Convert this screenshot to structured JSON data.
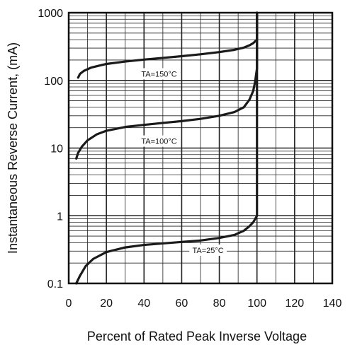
{
  "chart_data": {
    "type": "line",
    "xlabel": "Percent of Rated Peak Inverse Voltage",
    "ylabel": "Instantaneous Reverse Current, (mA)",
    "xlim": [
      0,
      140
    ],
    "ylim": [
      0.1,
      1000
    ],
    "yscale": "log",
    "grid": true,
    "x_ticks": [
      "0",
      "20",
      "40",
      "60",
      "80",
      "100",
      "120",
      "140"
    ],
    "y_ticks": [
      "0.1",
      "1",
      "10",
      "100",
      "1000"
    ],
    "series": [
      {
        "name": "TA=150°C",
        "color": "#1a1a1a",
        "points": [
          [
            5,
            110
          ],
          [
            6,
            125
          ],
          [
            8,
            138
          ],
          [
            12,
            155
          ],
          [
            20,
            175
          ],
          [
            30,
            190
          ],
          [
            40,
            203
          ],
          [
            50,
            215
          ],
          [
            60,
            228
          ],
          [
            70,
            243
          ],
          [
            80,
            262
          ],
          [
            88,
            283
          ],
          [
            93,
            305
          ],
          [
            96,
            330
          ],
          [
            98,
            355
          ],
          [
            100,
            400
          ],
          [
            100,
            1000
          ]
        ]
      },
      {
        "name": "TA=100°C",
        "color": "#1a1a1a",
        "points": [
          [
            4,
            7
          ],
          [
            5,
            8.5
          ],
          [
            7,
            10.5
          ],
          [
            10,
            13
          ],
          [
            15,
            16
          ],
          [
            20,
            18
          ],
          [
            30,
            20.5
          ],
          [
            40,
            22
          ],
          [
            50,
            23.5
          ],
          [
            60,
            25
          ],
          [
            70,
            27
          ],
          [
            80,
            30
          ],
          [
            88,
            34
          ],
          [
            93,
            40
          ],
          [
            96,
            52
          ],
          [
            98,
            70
          ],
          [
            99,
            95
          ],
          [
            100,
            150
          ],
          [
            100,
            1000
          ]
        ]
      },
      {
        "name": "TA=25°C",
        "color": "#1a1a1a",
        "points": [
          [
            4,
            0.1
          ],
          [
            6,
            0.13
          ],
          [
            9,
            0.18
          ],
          [
            13,
            0.23
          ],
          [
            20,
            0.29
          ],
          [
            30,
            0.34
          ],
          [
            40,
            0.37
          ],
          [
            50,
            0.39
          ],
          [
            60,
            0.41
          ],
          [
            70,
            0.43
          ],
          [
            80,
            0.47
          ],
          [
            88,
            0.52
          ],
          [
            93,
            0.6
          ],
          [
            96,
            0.7
          ],
          [
            98,
            0.8
          ],
          [
            100,
            1.0
          ],
          [
            100,
            1000
          ]
        ]
      }
    ],
    "annotations": [
      {
        "label": "TA=150°C",
        "x": 48,
        "y": 125
      },
      {
        "label": "TA=100°C",
        "x": 48,
        "y": 12.7
      },
      {
        "label": "TA=25°C",
        "x": 74,
        "y": 0.31
      }
    ]
  }
}
